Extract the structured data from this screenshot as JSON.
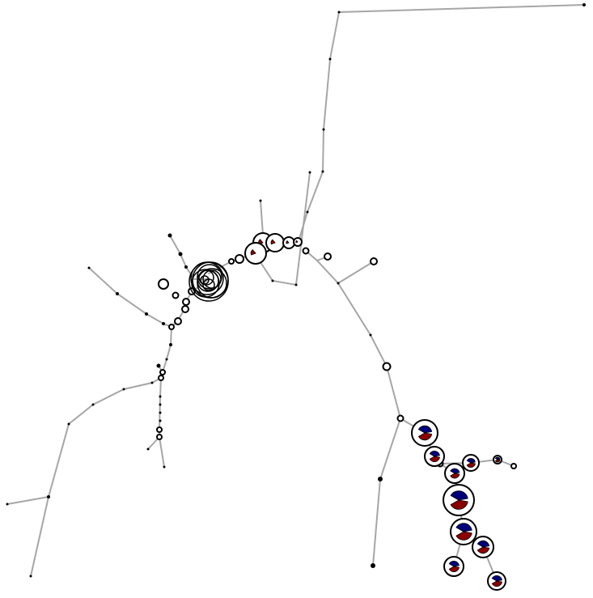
{
  "diagram": {
    "type": "network-tree-with-pie-nodes",
    "colors": {
      "edge": "#a6a6a6",
      "node_outline": "#000000",
      "node_fill": "#ffffff",
      "category_a": "#00007a",
      "category_b": "#8b0000"
    },
    "legend": []
  }
}
